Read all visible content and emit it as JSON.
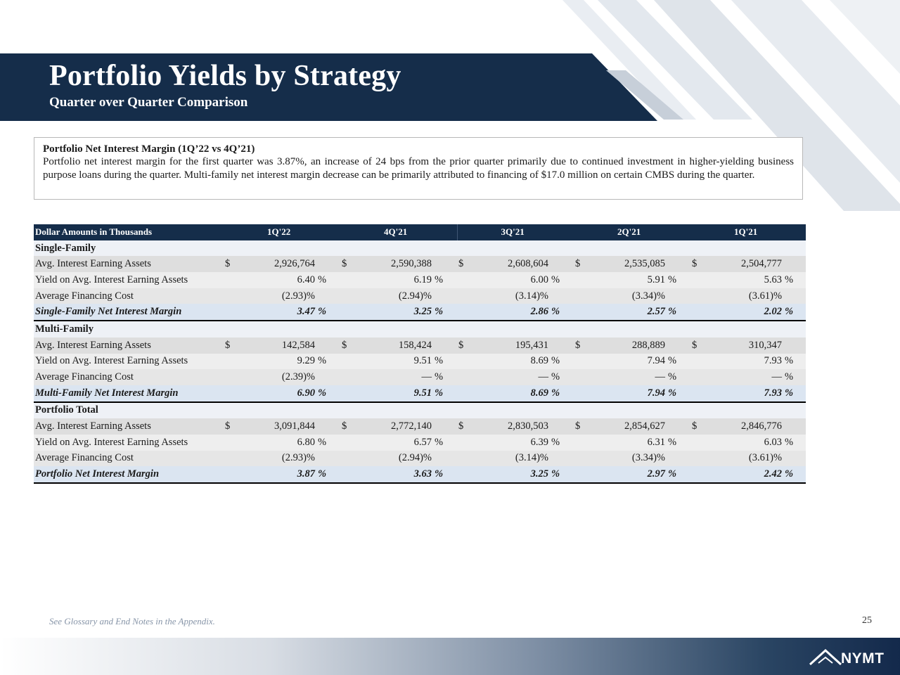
{
  "header": {
    "title": "Portfolio Yields by Strategy",
    "subtitle": "Quarter over Quarter Comparison"
  },
  "commentary": {
    "heading": "Portfolio Net Interest Margin (1Q’22 vs 4Q’21)",
    "body": "Portfolio net interest margin for the first quarter was 3.87%, an increase of 24 bps from the prior quarter primarily due to continued investment in higher-yielding business purpose loans during the quarter.  Multi-family net interest margin decrease can be primarily attributed to financing of $17.0 million on certain CMBS during the quarter."
  },
  "table": {
    "columns": [
      "Dollar Amounts in Thousands",
      "1Q'22",
      "4Q'21",
      "3Q'21",
      "2Q'21",
      "1Q'21"
    ],
    "sections": [
      {
        "title": "Single-Family",
        "rows": [
          {
            "label": "Avg. Interest Earning Assets",
            "currency": "$",
            "values": [
              "2,926,764",
              "2,590,388",
              "2,608,604",
              "2,535,085",
              "2,504,777"
            ],
            "suffixes": [
              "",
              "",
              "",
              "",
              ""
            ]
          },
          {
            "label": "Yield on Avg. Interest Earning Assets",
            "currency": "",
            "values": [
              "6.40",
              "6.19",
              "6.00",
              "5.91",
              "5.63"
            ],
            "suffixes": [
              "%",
              "%",
              "%",
              "%",
              "%"
            ]
          },
          {
            "label": "Average Financing Cost",
            "currency": "",
            "values": [
              "(2.93)%",
              "(2.94)%",
              "(3.14)%",
              "(3.34)%",
              "(3.61)%"
            ],
            "suffixes": [
              "",
              "",
              "",
              "",
              ""
            ]
          },
          {
            "label": "Single-Family Net Interest Margin",
            "currency": "",
            "values": [
              "3.47",
              "3.25",
              "2.86",
              "2.57",
              "2.02"
            ],
            "suffixes": [
              "%",
              "%",
              "%",
              "%",
              "%"
            ]
          }
        ]
      },
      {
        "title": "Multi-Family",
        "rows": [
          {
            "label": "Avg. Interest Earning Assets",
            "currency": "$",
            "values": [
              "142,584",
              "158,424",
              "195,431",
              "288,889",
              "310,347"
            ],
            "suffixes": [
              "",
              "",
              "",
              "",
              ""
            ]
          },
          {
            "label": "Yield on Avg. Interest Earning Assets",
            "currency": "",
            "values": [
              "9.29",
              "9.51",
              "8.69",
              "7.94",
              "7.93"
            ],
            "suffixes": [
              "%",
              "%",
              "%",
              "%",
              "%"
            ]
          },
          {
            "label": "Average Financing Cost",
            "currency": "",
            "values": [
              "(2.39)%",
              "—",
              "—",
              "—",
              "—"
            ],
            "suffixes": [
              "",
              "%",
              "%",
              "%",
              "%"
            ]
          },
          {
            "label": "Multi-Family Net Interest Margin",
            "currency": "",
            "values": [
              "6.90",
              "9.51",
              "8.69",
              "7.94",
              "7.93"
            ],
            "suffixes": [
              "%",
              "%",
              "%",
              "%",
              "%"
            ]
          }
        ]
      },
      {
        "title": "Portfolio Total",
        "rows": [
          {
            "label": "Avg. Interest Earning Assets",
            "currency": "$",
            "values": [
              "3,091,844",
              "2,772,140",
              "2,830,503",
              "2,854,627",
              "2,846,776"
            ],
            "suffixes": [
              "",
              "",
              "",
              "",
              ""
            ]
          },
          {
            "label": "Yield on Avg. Interest Earning Assets",
            "currency": "",
            "values": [
              "6.80",
              "6.57",
              "6.39",
              "6.31",
              "6.03"
            ],
            "suffixes": [
              "%",
              "%",
              "%",
              "%",
              "%"
            ]
          },
          {
            "label": "Average Financing Cost",
            "currency": "",
            "values": [
              "(2.93)%",
              "(2.94)%",
              "(3.14)%",
              "(3.34)%",
              "(3.61)%"
            ],
            "suffixes": [
              "",
              "",
              "",
              "",
              ""
            ]
          },
          {
            "label": "Portfolio Net Interest Margin",
            "currency": "",
            "values": [
              "3.87",
              "3.63",
              "3.25",
              "2.97",
              "2.42"
            ],
            "suffixes": [
              "%",
              "%",
              "%",
              "%",
              "%"
            ]
          }
        ]
      }
    ]
  },
  "footer": {
    "note": "See Glossary and End Notes in the Appendix.",
    "page": "25",
    "logo": "NYMT"
  },
  "colors": {
    "navy": "#152d4a",
    "section_bg": "#eef1f6",
    "nim_bg": "#dbe5f1"
  }
}
